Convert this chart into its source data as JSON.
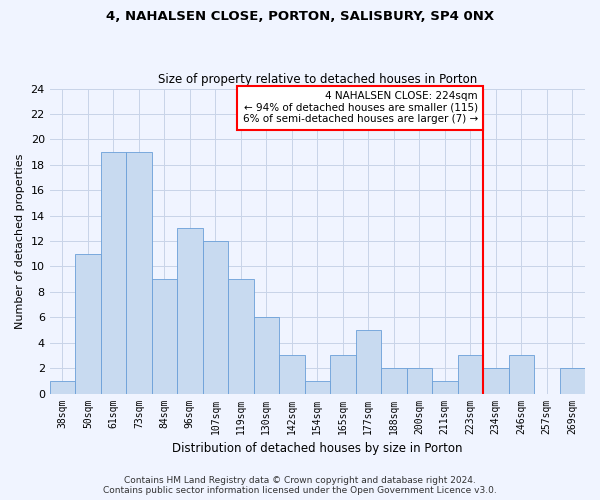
{
  "title1": "4, NAHALSEN CLOSE, PORTON, SALISBURY, SP4 0NX",
  "title2": "Size of property relative to detached houses in Porton",
  "xlabel": "Distribution of detached houses by size in Porton",
  "ylabel": "Number of detached properties",
  "categories": [
    "38sqm",
    "50sqm",
    "61sqm",
    "73sqm",
    "84sqm",
    "96sqm",
    "107sqm",
    "119sqm",
    "130sqm",
    "142sqm",
    "154sqm",
    "165sqm",
    "177sqm",
    "188sqm",
    "200sqm",
    "211sqm",
    "223sqm",
    "234sqm",
    "246sqm",
    "257sqm",
    "269sqm"
  ],
  "values": [
    1,
    11,
    19,
    19,
    9,
    13,
    12,
    9,
    6,
    3,
    1,
    3,
    5,
    2,
    2,
    1,
    3,
    2,
    3,
    0,
    2
  ],
  "bar_color": "#c8daf0",
  "bar_edge_color": "#6a9fd8",
  "vline_color": "red",
  "annotation_text": "4 NAHALSEN CLOSE: 224sqm\n← 94% of detached houses are smaller (115)\n6% of semi-detached houses are larger (7) →",
  "annotation_box_color": "white",
  "annotation_box_edge": "red",
  "ylim": [
    0,
    24
  ],
  "yticks": [
    0,
    2,
    4,
    6,
    8,
    10,
    12,
    14,
    16,
    18,
    20,
    22,
    24
  ],
  "footer": "Contains HM Land Registry data © Crown copyright and database right 2024.\nContains public sector information licensed under the Open Government Licence v3.0.",
  "grid_color": "#c8d4e8",
  "background_color": "#f0f4ff"
}
